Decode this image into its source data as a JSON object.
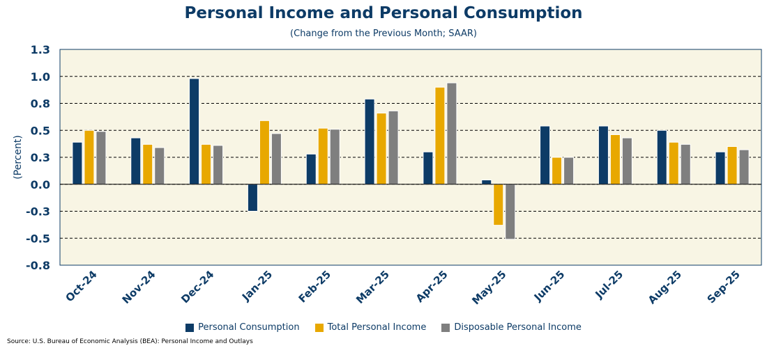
{
  "chart_data": {
    "type": "bar",
    "title": "Personal Income and Personal Consumption",
    "subtitle": "(Change from the Previous Month; SAAR)",
    "ylabel": "(Percent)",
    "xlabel": "",
    "ylim": [
      -0.75,
      1.25
    ],
    "yticks": [
      1.25,
      1.0,
      0.75,
      0.5,
      0.25,
      0.0,
      -0.25,
      -0.5,
      -0.75
    ],
    "ytick_labels": [
      "1.3",
      "1.0",
      "0.8",
      "0.5",
      "0.3",
      "0.0",
      "-0.3",
      "-0.5",
      "-0.8"
    ],
    "grid": true,
    "legend_position": "bottom",
    "categories": [
      "Oct-24",
      "Nov-24",
      "Dec-24",
      "Jan-25",
      "Feb-25",
      "Mar-25",
      "Apr-25",
      "May-25",
      "Jun-25",
      "Jul-25",
      "Aug-25",
      "Sep-25"
    ],
    "series": [
      {
        "name": "Personal Consumption",
        "color": "#0d3b66",
        "values": [
          0.39,
          0.43,
          0.98,
          -0.25,
          0.28,
          0.79,
          0.3,
          0.04,
          0.54,
          0.54,
          0.5,
          0.3
        ]
      },
      {
        "name": "Total Personal Income",
        "color": "#e8a800",
        "values": [
          0.5,
          0.37,
          0.37,
          0.59,
          0.52,
          0.66,
          0.9,
          -0.38,
          0.25,
          0.46,
          0.39,
          0.35
        ]
      },
      {
        "name": "Disposable Personal Income",
        "color": "#7f7f7f",
        "values": [
          0.49,
          0.34,
          0.36,
          0.47,
          0.51,
          0.68,
          0.94,
          -0.51,
          0.25,
          0.43,
          0.37,
          0.32
        ]
      }
    ],
    "source": "Source: U.S. Bureau of Economic Analysis (BEA): Personal Income and Outlays"
  }
}
